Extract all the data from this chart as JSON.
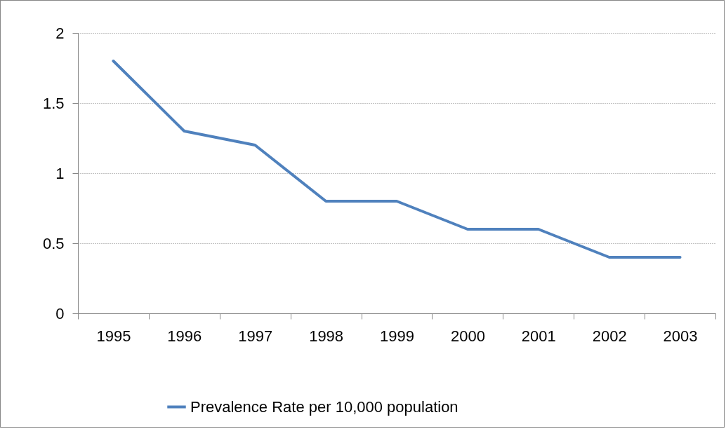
{
  "chart_data": {
    "type": "line",
    "categories": [
      "1995",
      "1996",
      "1997",
      "1998",
      "1999",
      "2000",
      "2001",
      "2002",
      "2003"
    ],
    "series": [
      {
        "name": "Prevalence Rate per 10,000 population",
        "color": "#4f81bd",
        "values": [
          1.8,
          1.3,
          1.2,
          0.8,
          0.8,
          0.6,
          0.6,
          0.4,
          0.4
        ]
      }
    ],
    "ylim": [
      0,
      2
    ],
    "yticks": [
      0,
      0.5,
      1,
      1.5,
      2
    ],
    "grid": "y",
    "legend": "bottom",
    "marker": "none",
    "line_style": "solid"
  }
}
